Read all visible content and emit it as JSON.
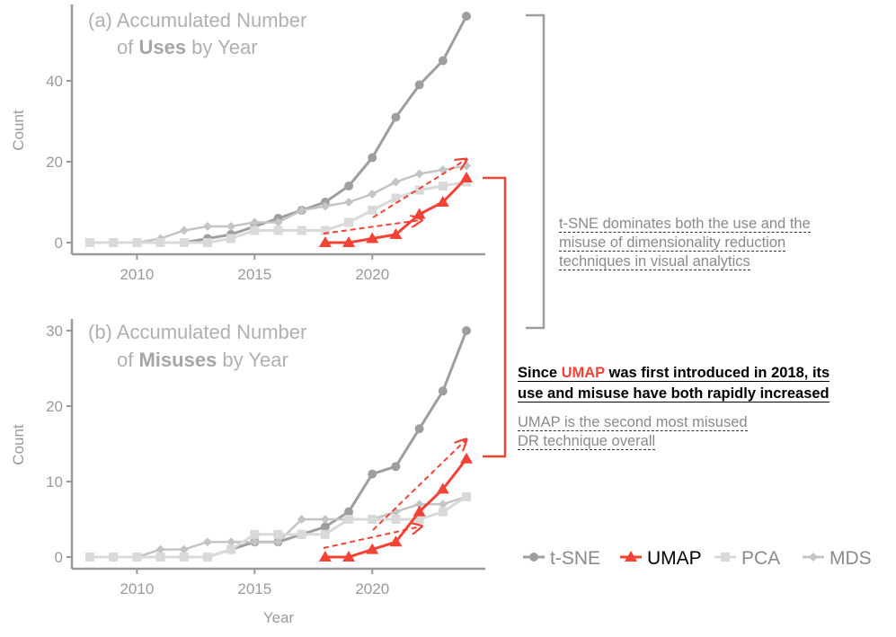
{
  "colors": {
    "tsne": "#9e9e9e",
    "umap": "#f44336",
    "pca": "#d9d9d9",
    "mds": "#c4c4c4",
    "axis": "#9a9a9a"
  },
  "chart_data": [
    {
      "type": "line",
      "title_prefix": "(a) Accumulated Number",
      "title_line2_pre": "of ",
      "title_bold": "Uses",
      "title_line2_post": " by Year",
      "xlabel": "",
      "ylabel": "Count",
      "xlim": [
        2008,
        2024
      ],
      "ylim": [
        0,
        56
      ],
      "xticks": [
        2010,
        2015,
        2020
      ],
      "yticks": [
        0,
        20,
        40
      ],
      "x": [
        2008,
        2009,
        2010,
        2011,
        2012,
        2013,
        2014,
        2015,
        2016,
        2017,
        2018,
        2019,
        2020,
        2021,
        2022,
        2023,
        2024
      ],
      "series": [
        {
          "name": "t-SNE",
          "key": "tsne",
          "values": [
            0,
            0,
            0,
            0,
            0,
            1,
            2,
            4,
            6,
            8,
            10,
            14,
            21,
            31,
            39,
            45,
            56
          ]
        },
        {
          "name": "MDS",
          "key": "mds",
          "values": [
            0,
            0,
            0,
            1,
            3,
            4,
            4,
            5,
            5,
            8,
            9,
            10,
            12,
            15,
            17,
            18,
            19
          ]
        },
        {
          "name": "PCA",
          "key": "pca",
          "values": [
            0,
            0,
            0,
            0,
            0,
            0,
            1,
            3,
            3,
            3,
            3,
            5,
            8,
            11,
            13,
            14,
            15
          ]
        },
        {
          "name": "UMAP",
          "key": "umap",
          "x": [
            2018,
            2019,
            2020,
            2021,
            2022,
            2023,
            2024
          ],
          "values": [
            0,
            0,
            1,
            2,
            7,
            10,
            16
          ]
        }
      ]
    },
    {
      "type": "line",
      "title_prefix": "(b) Accumulated Number",
      "title_line2_pre": "of ",
      "title_bold": "Misuses",
      "title_line2_post": " by Year",
      "xlabel": "Year",
      "ylabel": "Count",
      "xlim": [
        2008,
        2024
      ],
      "ylim": [
        0,
        30
      ],
      "xticks": [
        2010,
        2015,
        2020
      ],
      "yticks": [
        0,
        10,
        20,
        30
      ],
      "x": [
        2008,
        2009,
        2010,
        2011,
        2012,
        2013,
        2014,
        2015,
        2016,
        2017,
        2018,
        2019,
        2020,
        2021,
        2022,
        2023,
        2024
      ],
      "series": [
        {
          "name": "t-SNE",
          "key": "tsne",
          "values": [
            0,
            0,
            0,
            0,
            0,
            0,
            1,
            2,
            2,
            3,
            4,
            6,
            11,
            12,
            17,
            22,
            30
          ]
        },
        {
          "name": "MDS",
          "key": "mds",
          "values": [
            0,
            0,
            0,
            1,
            1,
            2,
            2,
            2,
            2,
            5,
            5,
            5,
            5,
            6,
            7,
            7,
            8
          ]
        },
        {
          "name": "PCA",
          "key": "pca",
          "values": [
            0,
            0,
            0,
            0,
            0,
            0,
            1,
            3,
            3,
            3,
            3,
            5,
            5,
            5,
            5,
            6,
            8
          ]
        },
        {
          "name": "UMAP",
          "key": "umap",
          "x": [
            2018,
            2019,
            2020,
            2021,
            2022,
            2023,
            2024
          ],
          "values": [
            0,
            0,
            1,
            2,
            6,
            9,
            13
          ]
        }
      ]
    }
  ],
  "legend": [
    {
      "name": "t-SNE",
      "key": "tsne",
      "marker": "circle"
    },
    {
      "name": "UMAP",
      "key": "umap",
      "marker": "triangle"
    },
    {
      "name": "PCA",
      "key": "pca",
      "marker": "square"
    },
    {
      "name": "MDS",
      "key": "mds",
      "marker": "diamond"
    }
  ],
  "annotations": {
    "tsne_note_line1": "t-SNE dominates both the use and the",
    "tsne_note_line2": "misuse of dimensionality reduction",
    "tsne_note_line3": "techniques in visual analytics",
    "umap_head_pre": "Since ",
    "umap_head_umap": "UMAP",
    "umap_head_post": " was first introduced in 2018, its",
    "umap_head_line2": "use and misuse have both rapidly increased",
    "umap_note_line1": "UMAP is the second most misused",
    "umap_note_line2": "DR technique overall"
  }
}
